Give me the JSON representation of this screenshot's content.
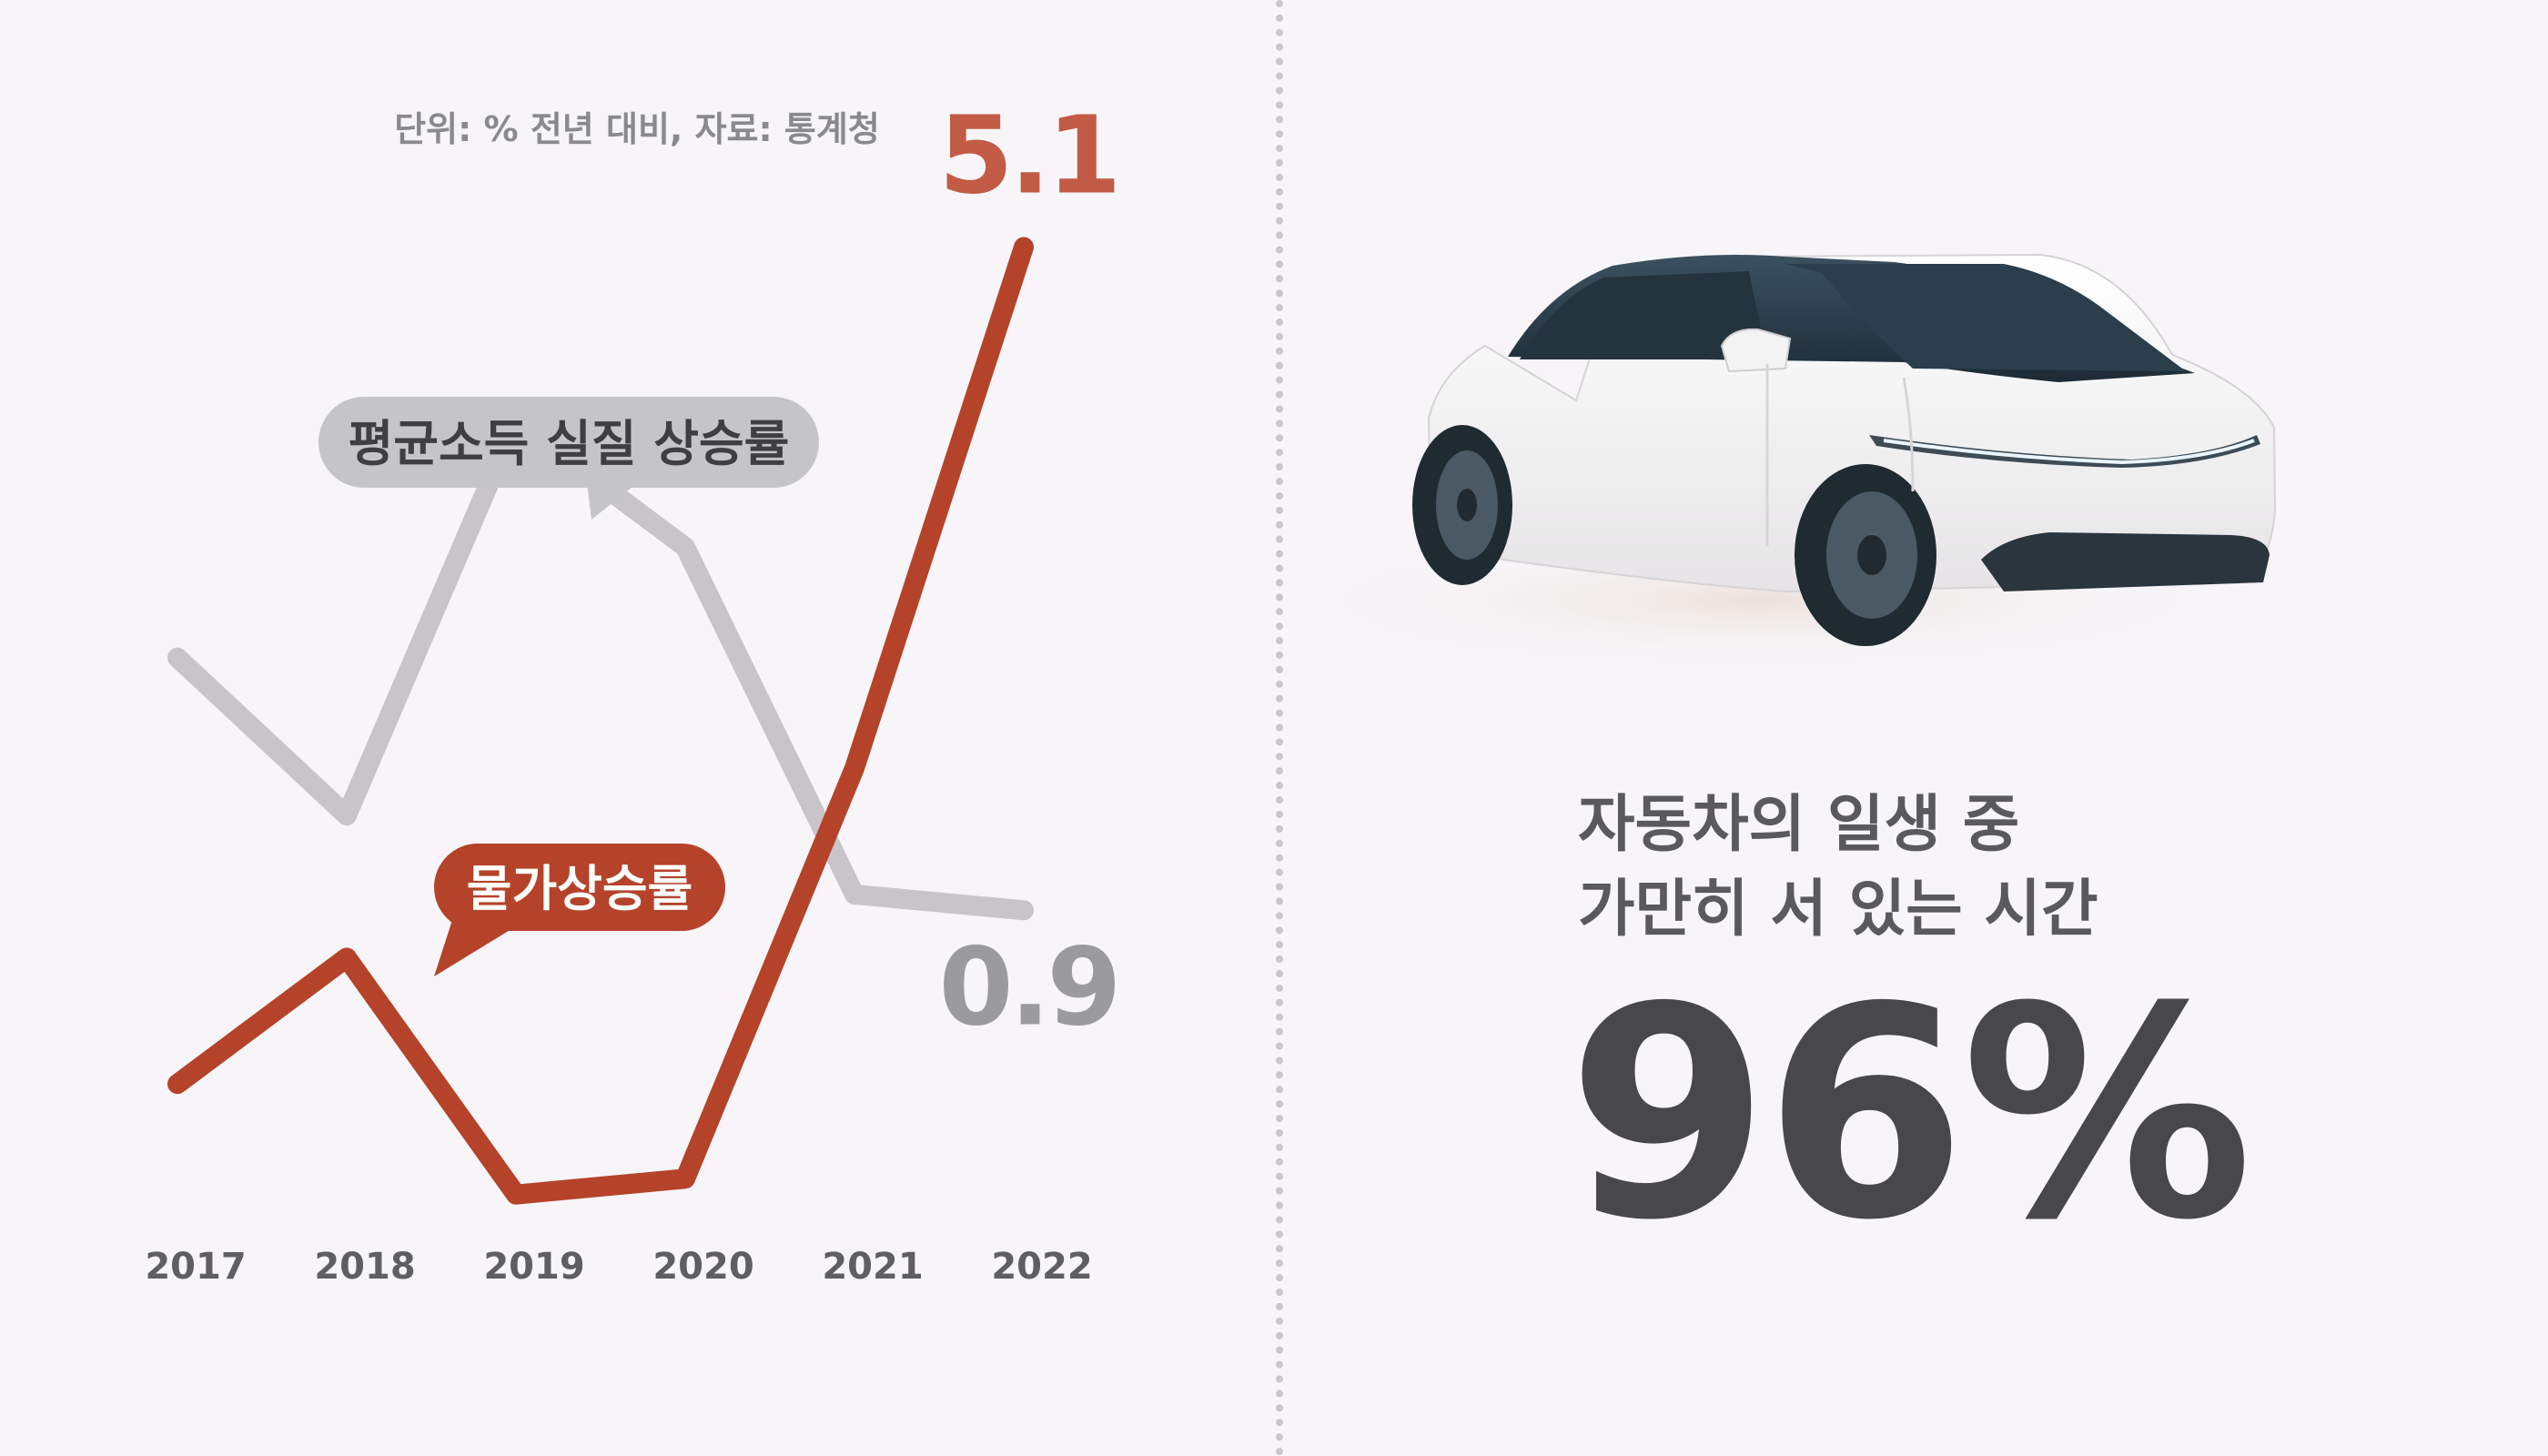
{
  "chart_data": {
    "type": "line",
    "categories": [
      "2017",
      "2018",
      "2019",
      "2020",
      "2021",
      "2022"
    ],
    "note": "단위: % 전년 대비, 자료: 통계청",
    "ylim": [
      -1.0,
      5.8
    ],
    "grid": false,
    "series": [
      {
        "name": "평균소득 실질 상승률",
        "color": "#c7c5c9",
        "values": [
          2.5,
          1.5,
          4.0,
          3.2,
          1.0,
          0.9
        ],
        "end_label": "0.9",
        "end_label_color": "#9b9a9e"
      },
      {
        "name": "물가상승률",
        "color": "#b4432a",
        "values": [
          -0.2,
          0.6,
          -0.9,
          -0.8,
          1.8,
          5.1
        ],
        "end_label": "5.1",
        "end_label_color": "#c25b45"
      }
    ]
  },
  "colors": {
    "background": "#f7f5f8",
    "gray_bubble": "#c5c4c8",
    "red_bubble": "#b4432a",
    "axis_text": "#5f5e63",
    "headline_text": "#5a595d",
    "stat_text": "#48474a"
  },
  "info": {
    "headline_line1": "자동차의 일생 중",
    "headline_line2": "가만히 서 있는 시간",
    "big_stat": "96%",
    "image": "white-electric-suv-car"
  }
}
